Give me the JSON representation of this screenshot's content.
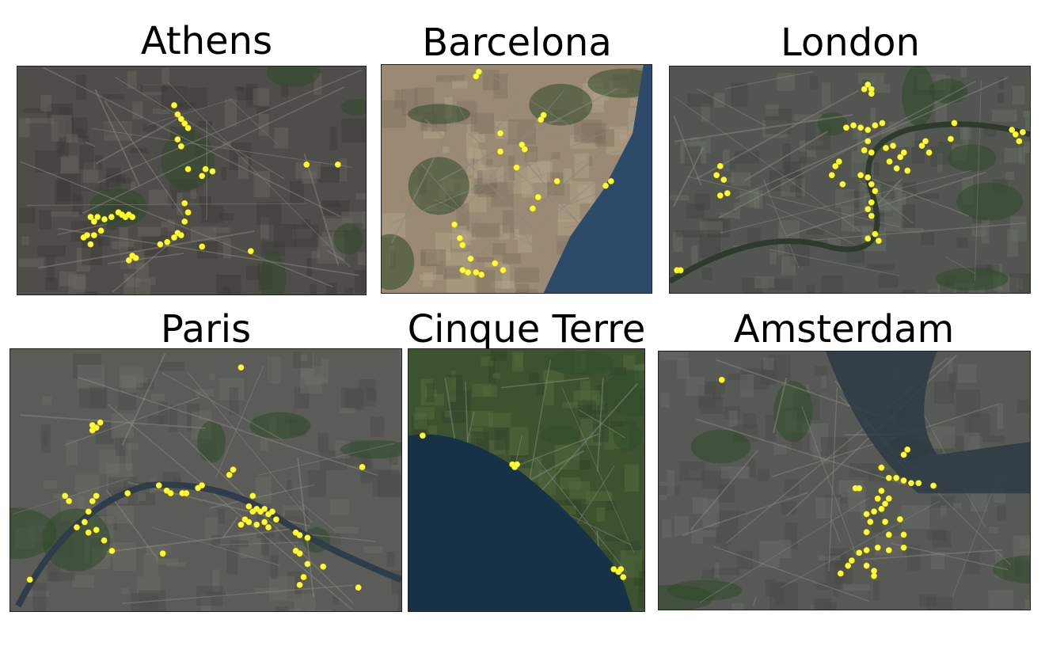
{
  "figure": {
    "point_color": "#ffff33",
    "cities": [
      {
        "name": "Athens",
        "map_tones": [
          "#4f4d49",
          "#3b3a37",
          "#6a6862",
          "#2f3a26"
        ],
        "points": [
          [
            0.45,
            0.17
          ],
          [
            0.46,
            0.21
          ],
          [
            0.47,
            0.23
          ],
          [
            0.48,
            0.25
          ],
          [
            0.49,
            0.27
          ],
          [
            0.46,
            0.32
          ],
          [
            0.47,
            0.35
          ],
          [
            0.49,
            0.45
          ],
          [
            0.54,
            0.45
          ],
          [
            0.53,
            0.48
          ],
          [
            0.56,
            0.46
          ],
          [
            0.83,
            0.43
          ],
          [
            0.92,
            0.43
          ],
          [
            0.21,
            0.66
          ],
          [
            0.22,
            0.68
          ],
          [
            0.23,
            0.66
          ],
          [
            0.25,
            0.67
          ],
          [
            0.27,
            0.66
          ],
          [
            0.29,
            0.64
          ],
          [
            0.3,
            0.65
          ],
          [
            0.31,
            0.66
          ],
          [
            0.32,
            0.65
          ],
          [
            0.33,
            0.66
          ],
          [
            0.19,
            0.75
          ],
          [
            0.2,
            0.74
          ],
          [
            0.22,
            0.74
          ],
          [
            0.24,
            0.72
          ],
          [
            0.21,
            0.78
          ],
          [
            0.33,
            0.83
          ],
          [
            0.32,
            0.85
          ],
          [
            0.34,
            0.84
          ],
          [
            0.41,
            0.78
          ],
          [
            0.43,
            0.77
          ],
          [
            0.45,
            0.75
          ],
          [
            0.46,
            0.73
          ],
          [
            0.47,
            0.74
          ],
          [
            0.48,
            0.68
          ],
          [
            0.49,
            0.64
          ],
          [
            0.48,
            0.6
          ],
          [
            0.53,
            0.79
          ],
          [
            0.67,
            0.81
          ]
        ]
      },
      {
        "name": "Barcelona",
        "map_tones": [
          "#9a8a74",
          "#7d6f5d",
          "#b3a48c",
          "#2c4a6a"
        ],
        "points": [
          [
            0.35,
            0.05
          ],
          [
            0.36,
            0.03
          ],
          [
            0.59,
            0.24
          ],
          [
            0.6,
            0.22
          ],
          [
            0.44,
            0.3
          ],
          [
            0.44,
            0.38
          ],
          [
            0.52,
            0.35
          ],
          [
            0.5,
            0.45
          ],
          [
            0.53,
            0.37
          ],
          [
            0.65,
            0.51
          ],
          [
            0.58,
            0.58
          ],
          [
            0.56,
            0.63
          ],
          [
            0.83,
            0.53
          ],
          [
            0.85,
            0.51
          ],
          [
            0.27,
            0.7
          ],
          [
            0.29,
            0.76
          ],
          [
            0.3,
            0.79
          ],
          [
            0.33,
            0.85
          ],
          [
            0.32,
            0.91
          ],
          [
            0.3,
            0.9
          ],
          [
            0.35,
            0.91
          ],
          [
            0.37,
            0.92
          ],
          [
            0.42,
            0.87
          ],
          [
            0.45,
            0.9
          ]
        ]
      },
      {
        "name": "London",
        "map_tones": [
          "#535650",
          "#41453f",
          "#697064",
          "#2d3a2c"
        ],
        "points": [
          [
            0.55,
            0.08
          ],
          [
            0.56,
            0.1
          ],
          [
            0.56,
            0.12
          ],
          [
            0.54,
            0.1
          ],
          [
            0.49,
            0.27
          ],
          [
            0.51,
            0.26
          ],
          [
            0.53,
            0.27
          ],
          [
            0.55,
            0.28
          ],
          [
            0.57,
            0.26
          ],
          [
            0.59,
            0.25
          ],
          [
            0.55,
            0.33
          ],
          [
            0.54,
            0.37
          ],
          [
            0.56,
            0.38
          ],
          [
            0.6,
            0.36
          ],
          [
            0.62,
            0.35
          ],
          [
            0.61,
            0.42
          ],
          [
            0.64,
            0.4
          ],
          [
            0.65,
            0.38
          ],
          [
            0.63,
            0.45
          ],
          [
            0.66,
            0.46
          ],
          [
            0.7,
            0.35
          ],
          [
            0.71,
            0.33
          ],
          [
            0.72,
            0.38
          ],
          [
            0.79,
            0.25
          ],
          [
            0.78,
            0.32
          ],
          [
            0.95,
            0.28
          ],
          [
            0.96,
            0.3
          ],
          [
            0.97,
            0.33
          ],
          [
            0.98,
            0.29
          ],
          [
            0.47,
            0.42
          ],
          [
            0.46,
            0.44
          ],
          [
            0.45,
            0.48
          ],
          [
            0.48,
            0.52
          ],
          [
            0.53,
            0.48
          ],
          [
            0.55,
            0.49
          ],
          [
            0.56,
            0.52
          ],
          [
            0.57,
            0.55
          ],
          [
            0.56,
            0.6
          ],
          [
            0.55,
            0.63
          ],
          [
            0.56,
            0.66
          ],
          [
            0.57,
            0.74
          ],
          [
            0.55,
            0.76
          ],
          [
            0.58,
            0.77
          ],
          [
            0.14,
            0.44
          ],
          [
            0.13,
            0.48
          ],
          [
            0.15,
            0.5
          ],
          [
            0.16,
            0.56
          ],
          [
            0.14,
            0.57
          ],
          [
            0.02,
            0.9
          ],
          [
            0.03,
            0.9
          ]
        ]
      },
      {
        "name": "Paris",
        "map_tones": [
          "#5b5c58",
          "#4a4b47",
          "#6e6f69",
          "#2f3c4a"
        ],
        "points": [
          [
            0.59,
            0.07
          ],
          [
            0.21,
            0.29
          ],
          [
            0.22,
            0.3
          ],
          [
            0.21,
            0.31
          ],
          [
            0.23,
            0.28
          ],
          [
            0.57,
            0.46
          ],
          [
            0.56,
            0.48
          ],
          [
            0.9,
            0.45
          ],
          [
            0.49,
            0.52
          ],
          [
            0.48,
            0.53
          ],
          [
            0.14,
            0.56
          ],
          [
            0.15,
            0.58
          ],
          [
            0.21,
            0.58
          ],
          [
            0.22,
            0.56
          ],
          [
            0.3,
            0.55
          ],
          [
            0.38,
            0.52
          ],
          [
            0.4,
            0.54
          ],
          [
            0.41,
            0.55
          ],
          [
            0.44,
            0.55
          ],
          [
            0.45,
            0.55
          ],
          [
            0.2,
            0.62
          ],
          [
            0.19,
            0.66
          ],
          [
            0.17,
            0.68
          ],
          [
            0.2,
            0.7
          ],
          [
            0.22,
            0.69
          ],
          [
            0.24,
            0.73
          ],
          [
            0.26,
            0.77
          ],
          [
            0.62,
            0.56
          ],
          [
            0.61,
            0.6
          ],
          [
            0.62,
            0.62
          ],
          [
            0.63,
            0.61
          ],
          [
            0.64,
            0.62
          ],
          [
            0.65,
            0.61
          ],
          [
            0.66,
            0.63
          ],
          [
            0.67,
            0.62
          ],
          [
            0.61,
            0.66
          ],
          [
            0.63,
            0.67
          ],
          [
            0.65,
            0.66
          ],
          [
            0.66,
            0.68
          ],
          [
            0.68,
            0.65
          ],
          [
            0.59,
            0.67
          ],
          [
            0.6,
            0.65
          ],
          [
            0.73,
            0.7
          ],
          [
            0.74,
            0.71
          ],
          [
            0.76,
            0.72
          ],
          [
            0.73,
            0.77
          ],
          [
            0.74,
            0.78
          ],
          [
            0.76,
            0.82
          ],
          [
            0.39,
            0.78
          ],
          [
            0.8,
            0.83
          ],
          [
            0.75,
            0.87
          ],
          [
            0.74,
            0.9
          ],
          [
            0.89,
            0.91
          ],
          [
            0.05,
            0.88
          ]
        ]
      },
      {
        "name": "Cinque Terre",
        "map_tones": [
          "#3d5330",
          "#2e4326",
          "#556c40",
          "#173246"
        ],
        "points": [
          [
            0.06,
            0.33
          ],
          [
            0.44,
            0.44
          ],
          [
            0.45,
            0.45
          ],
          [
            0.46,
            0.44
          ],
          [
            0.87,
            0.84
          ],
          [
            0.89,
            0.85
          ],
          [
            0.9,
            0.84
          ],
          [
            0.91,
            0.87
          ]
        ]
      },
      {
        "name": "Amsterdam",
        "map_tones": [
          "#575955",
          "#474945",
          "#6b6d68",
          "#2e3a44"
        ],
        "points": [
          [
            0.17,
            0.11
          ],
          [
            0.67,
            0.38
          ],
          [
            0.66,
            0.4
          ],
          [
            0.6,
            0.45
          ],
          [
            0.62,
            0.49
          ],
          [
            0.64,
            0.49
          ],
          [
            0.66,
            0.5
          ],
          [
            0.68,
            0.51
          ],
          [
            0.7,
            0.51
          ],
          [
            0.74,
            0.52
          ],
          [
            0.53,
            0.53
          ],
          [
            0.54,
            0.53
          ],
          [
            0.6,
            0.54
          ],
          [
            0.59,
            0.57
          ],
          [
            0.62,
            0.57
          ],
          [
            0.61,
            0.59
          ],
          [
            0.6,
            0.61
          ],
          [
            0.58,
            0.62
          ],
          [
            0.57,
            0.66
          ],
          [
            0.56,
            0.63
          ],
          [
            0.61,
            0.66
          ],
          [
            0.65,
            0.65
          ],
          [
            0.56,
            0.7
          ],
          [
            0.62,
            0.71
          ],
          [
            0.66,
            0.71
          ],
          [
            0.59,
            0.76
          ],
          [
            0.56,
            0.77
          ],
          [
            0.62,
            0.77
          ],
          [
            0.66,
            0.76
          ],
          [
            0.54,
            0.78
          ],
          [
            0.52,
            0.81
          ],
          [
            0.51,
            0.83
          ],
          [
            0.49,
            0.86
          ],
          [
            0.58,
            0.85
          ],
          [
            0.58,
            0.87
          ],
          [
            0.56,
            0.83
          ]
        ]
      }
    ]
  }
}
